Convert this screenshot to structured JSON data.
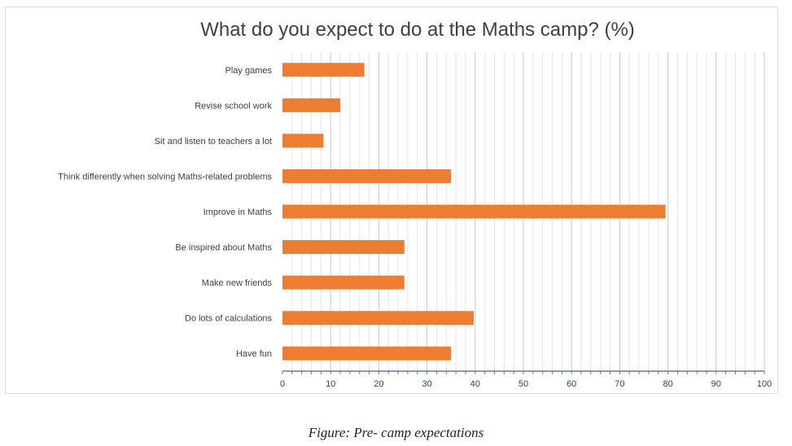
{
  "chart_data": {
    "type": "bar",
    "orientation": "horizontal",
    "title": "What do you expect to do at the Maths camp? (%)",
    "categories": [
      "Play games",
      "Revise school work",
      "Sit and listen to teachers a lot",
      "Think differently when solving Maths-related problems",
      "Improve in Maths",
      "Be inspired about Maths",
      "Make new friends",
      "Do lots of calculations",
      "Have fun"
    ],
    "values": [
      17,
      12,
      8.5,
      35,
      79.5,
      25.3,
      25.3,
      39.7,
      35
    ],
    "xlim": [
      0,
      100
    ],
    "x_ticks": [
      "0",
      "10",
      "20",
      "30",
      "40",
      "50",
      "60",
      "70",
      "80",
      "90",
      "100"
    ],
    "grid": "vertical minor and major gridlines",
    "bar_color": "#ed7d31"
  },
  "caption": "Figure: Pre- camp expectations"
}
